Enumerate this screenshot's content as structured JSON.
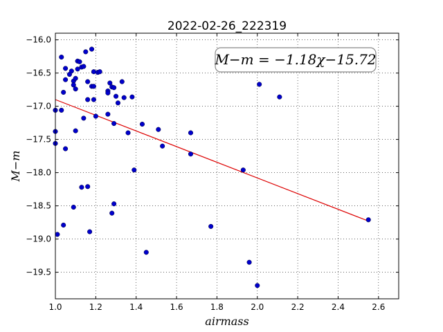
{
  "chart_data": {
    "type": "scatter",
    "title": "2022-02-26_222319",
    "xlabel": "airmass",
    "ylabel": "M−m",
    "xlim": [
      1.0,
      2.7
    ],
    "ylim": [
      -15.9,
      -19.9
    ],
    "y_inverted": true,
    "x_ticks": [
      1.0,
      1.2,
      1.4,
      1.6,
      1.8,
      2.0,
      2.2,
      2.4,
      2.6
    ],
    "x_tick_labels": [
      "1.0",
      "1.2",
      "1.4",
      "1.6",
      "1.8",
      "2.0",
      "2.2",
      "2.4",
      "2.6"
    ],
    "y_ticks": [
      -16.0,
      -16.5,
      -17.0,
      -17.5,
      -18.0,
      -18.5,
      -19.0,
      -19.5
    ],
    "y_tick_labels": [
      "−16.0",
      "−16.5",
      "−17.0",
      "−17.5",
      "−18.0",
      "−18.5",
      "−19.0",
      "−19.5"
    ],
    "grid": true,
    "annotation": "M−m = −1.18χ−15.72",
    "fit": {
      "slope": -1.18,
      "intercept": -15.72,
      "x_range": [
        1.0,
        2.55
      ],
      "color": "#dd0000"
    },
    "point_color": "#0000cc",
    "points": [
      [
        1.0,
        -17.06
      ],
      [
        1.0,
        -17.38
      ],
      [
        1.0,
        -17.56
      ],
      [
        1.01,
        -18.93
      ],
      [
        1.03,
        -16.26
      ],
      [
        1.03,
        -17.06
      ],
      [
        1.04,
        -16.79
      ],
      [
        1.04,
        -18.79
      ],
      [
        1.05,
        -16.43
      ],
      [
        1.05,
        -16.6
      ],
      [
        1.05,
        -17.64
      ],
      [
        1.07,
        -16.52
      ],
      [
        1.08,
        -16.47
      ],
      [
        1.09,
        -18.52
      ],
      [
        1.09,
        -16.62
      ],
      [
        1.09,
        -16.68
      ],
      [
        1.1,
        -16.58
      ],
      [
        1.1,
        -16.74
      ],
      [
        1.1,
        -17.37
      ],
      [
        1.11,
        -16.44
      ],
      [
        1.11,
        -16.32
      ],
      [
        1.12,
        -16.33
      ],
      [
        1.13,
        -16.41
      ],
      [
        1.13,
        -18.22
      ],
      [
        1.14,
        -16.4
      ],
      [
        1.14,
        -17.18
      ],
      [
        1.15,
        -16.18
      ],
      [
        1.16,
        -16.63
      ],
      [
        1.16,
        -16.9
      ],
      [
        1.16,
        -18.21
      ],
      [
        1.17,
        -18.89
      ],
      [
        1.18,
        -16.14
      ],
      [
        1.18,
        -16.7
      ],
      [
        1.19,
        -16.7
      ],
      [
        1.19,
        -16.48
      ],
      [
        1.19,
        -16.9
      ],
      [
        1.2,
        -17.15
      ],
      [
        1.21,
        -16.49
      ],
      [
        1.22,
        -16.48
      ],
      [
        1.26,
        -16.77
      ],
      [
        1.26,
        -16.8
      ],
      [
        1.26,
        -17.12
      ],
      [
        1.27,
        -16.65
      ],
      [
        1.28,
        -18.61
      ],
      [
        1.28,
        -16.71
      ],
      [
        1.29,
        -16.72
      ],
      [
        1.29,
        -18.47
      ],
      [
        1.29,
        -17.26
      ],
      [
        1.3,
        -16.85
      ],
      [
        1.31,
        -16.95
      ],
      [
        1.33,
        -16.63
      ],
      [
        1.34,
        -16.87
      ],
      [
        1.36,
        -17.4
      ],
      [
        1.38,
        -16.86
      ],
      [
        1.39,
        -17.96
      ],
      [
        1.43,
        -17.27
      ],
      [
        1.45,
        -19.2
      ],
      [
        1.51,
        -17.35
      ],
      [
        1.53,
        -17.6
      ],
      [
        1.67,
        -17.4
      ],
      [
        1.67,
        -17.72
      ],
      [
        1.77,
        -18.81
      ],
      [
        1.93,
        -17.96
      ],
      [
        1.96,
        -19.35
      ],
      [
        2.0,
        -19.7
      ],
      [
        2.01,
        -16.67
      ],
      [
        2.11,
        -16.86
      ],
      [
        2.55,
        -18.71
      ]
    ]
  }
}
